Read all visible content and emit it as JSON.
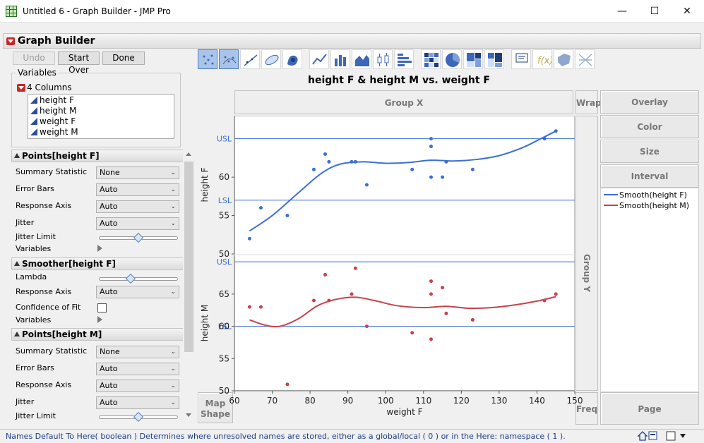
{
  "window": {
    "title": "Untitled 6 - Graph Builder - JMP Pro",
    "minimize": "—",
    "maximize": "☐",
    "close": "✕"
  },
  "graph_builder": {
    "title": "Graph Builder",
    "buttons": {
      "undo": "Undo",
      "start_over": "Start Over",
      "done": "Done"
    }
  },
  "variables": {
    "group_label": "Variables",
    "count_label": "4 Columns",
    "columns": [
      "height F",
      "height M",
      "weight F",
      "weight M"
    ]
  },
  "properties": {
    "points_f": {
      "header": "Points[height F]",
      "summary_statistic_label": "Summary Statistic",
      "summary_statistic": "None",
      "error_bars_label": "Error Bars",
      "error_bars": "Auto",
      "response_axis_label": "Response Axis",
      "response_axis": "Auto",
      "jitter_label": "Jitter",
      "jitter": "Auto",
      "jitter_limit_label": "Jitter Limit",
      "jitter_limit": 0.5,
      "variables_label": "Variables"
    },
    "smoother_f": {
      "header": "Smoother[height F]",
      "lambda_label": "Lambda",
      "lambda": 0.4,
      "response_axis_label": "Response Axis",
      "response_axis": "Auto",
      "confidence_label": "Confidence of Fit",
      "variables_label": "Variables"
    },
    "points_m": {
      "header": "Points[height M]",
      "summary_statistic_label": "Summary Statistic",
      "summary_statistic": "None",
      "error_bars_label": "Error Bars",
      "error_bars": "Auto",
      "response_axis_label": "Response Axis",
      "response_axis": "Auto",
      "jitter_label": "Jitter",
      "jitter": "Auto",
      "jitter_limit_label": "Jitter Limit",
      "jitter_limit": 0.5
    }
  },
  "toolbar": {
    "icons": [
      "points-icon",
      "contour-points-icon",
      "line-of-fit-icon",
      "ellipse-icon",
      "contour-icon",
      "line-icon",
      "bar-icon",
      "area-icon",
      "box-plot-icon",
      "histogram-icon",
      "heatmap-icon",
      "pie-icon",
      "treemap-icon",
      "mosaic-icon",
      "caption-box-icon",
      "formula-icon",
      "map-shapes-icon",
      "parallel-icon"
    ]
  },
  "drop_zones": {
    "group_x": "Group X",
    "wrap": "Wrap",
    "overlay": "Overlay",
    "color": "Color",
    "size": "Size",
    "interval": "Interval",
    "group_y": "Group Y",
    "map_shape": "Map\nShape",
    "freq": "Freq",
    "page": "Page"
  },
  "legend": {
    "items": [
      {
        "label": "Smooth(height F)",
        "color": "#3b6fd4"
      },
      {
        "label": "Smooth(height M)",
        "color": "#c8414b"
      }
    ]
  },
  "colors": {
    "female": "#3b6fd4",
    "male": "#c8414b",
    "ref_line": "#3b6fd4"
  },
  "status": {
    "text": "Names Default To Here( boolean )  Determines where unresolved names are stored, either as a global/local ( 0 ) or in the Here: namespace ( 1 )."
  },
  "chart_data": {
    "type": "scatter",
    "title": "height F & height M vs. weight F",
    "xlabel": "weight F",
    "xlim": [
      60,
      150
    ],
    "xticks": [
      60,
      70,
      80,
      90,
      100,
      110,
      120,
      130,
      140,
      150
    ],
    "panels": [
      {
        "ylabel": "height F",
        "ylim": [
          50,
          68
        ],
        "yticks": [
          50,
          55,
          60
        ],
        "reference_lines": [
          {
            "label": "USL",
            "y": 65
          },
          {
            "label": "LSL",
            "y": 57
          }
        ],
        "series": [
          {
            "name": "Smooth(height F)",
            "points": [
              [
                64,
                52
              ],
              [
                67,
                56
              ],
              [
                74,
                55
              ],
              [
                81,
                61
              ],
              [
                84,
                63
              ],
              [
                85,
                62
              ],
              [
                91,
                62
              ],
              [
                92,
                62
              ],
              [
                95,
                59
              ],
              [
                107,
                61
              ],
              [
                112,
                65
              ],
              [
                112,
                64
              ],
              [
                112,
                60
              ],
              [
                115,
                60
              ],
              [
                116,
                62
              ],
              [
                123,
                61
              ],
              [
                142,
                65
              ],
              [
                145,
                66
              ]
            ],
            "smooth": [
              [
                64,
                53
              ],
              [
                70,
                55
              ],
              [
                77,
                58
              ],
              [
                83,
                60.5
              ],
              [
                88,
                61.7
              ],
              [
                94,
                62
              ],
              [
                100,
                61.8
              ],
              [
                106,
                61.9
              ],
              [
                112,
                62.2
              ],
              [
                118,
                62.1
              ],
              [
                124,
                62.3
              ],
              [
                130,
                62.8
              ],
              [
                136,
                63.8
              ],
              [
                141,
                65
              ],
              [
                145,
                66
              ]
            ]
          }
        ]
      },
      {
        "ylabel": "height M",
        "ylim": [
          50,
          71
        ],
        "yticks": [
          50,
          55,
          60,
          65
        ],
        "reference_lines": [
          {
            "label": "USL",
            "y": 70
          },
          {
            "label": "LSL",
            "y": 60
          }
        ],
        "series": [
          {
            "name": "Smooth(height M)",
            "points": [
              [
                64,
                63
              ],
              [
                67,
                63
              ],
              [
                74,
                51
              ],
              [
                81,
                64
              ],
              [
                84,
                68
              ],
              [
                85,
                64
              ],
              [
                91,
                65
              ],
              [
                92,
                69
              ],
              [
                95,
                60
              ],
              [
                107,
                59
              ],
              [
                112,
                67
              ],
              [
                112,
                65
              ],
              [
                112,
                58
              ],
              [
                115,
                66
              ],
              [
                116,
                62
              ],
              [
                123,
                61
              ],
              [
                142,
                64
              ],
              [
                145,
                65
              ]
            ],
            "smooth": [
              [
                64,
                61
              ],
              [
                68,
                60.2
              ],
              [
                72,
                60
              ],
              [
                77,
                61.2
              ],
              [
                82,
                63.2
              ],
              [
                87,
                64.2
              ],
              [
                92,
                64.5
              ],
              [
                97,
                64
              ],
              [
                103,
                63.2
              ],
              [
                110,
                62.9
              ],
              [
                116,
                63.1
              ],
              [
                122,
                62.8
              ],
              [
                128,
                62.9
              ],
              [
                134,
                63.3
              ],
              [
                140,
                63.9
              ],
              [
                145,
                64.6
              ]
            ]
          }
        ]
      }
    ]
  }
}
